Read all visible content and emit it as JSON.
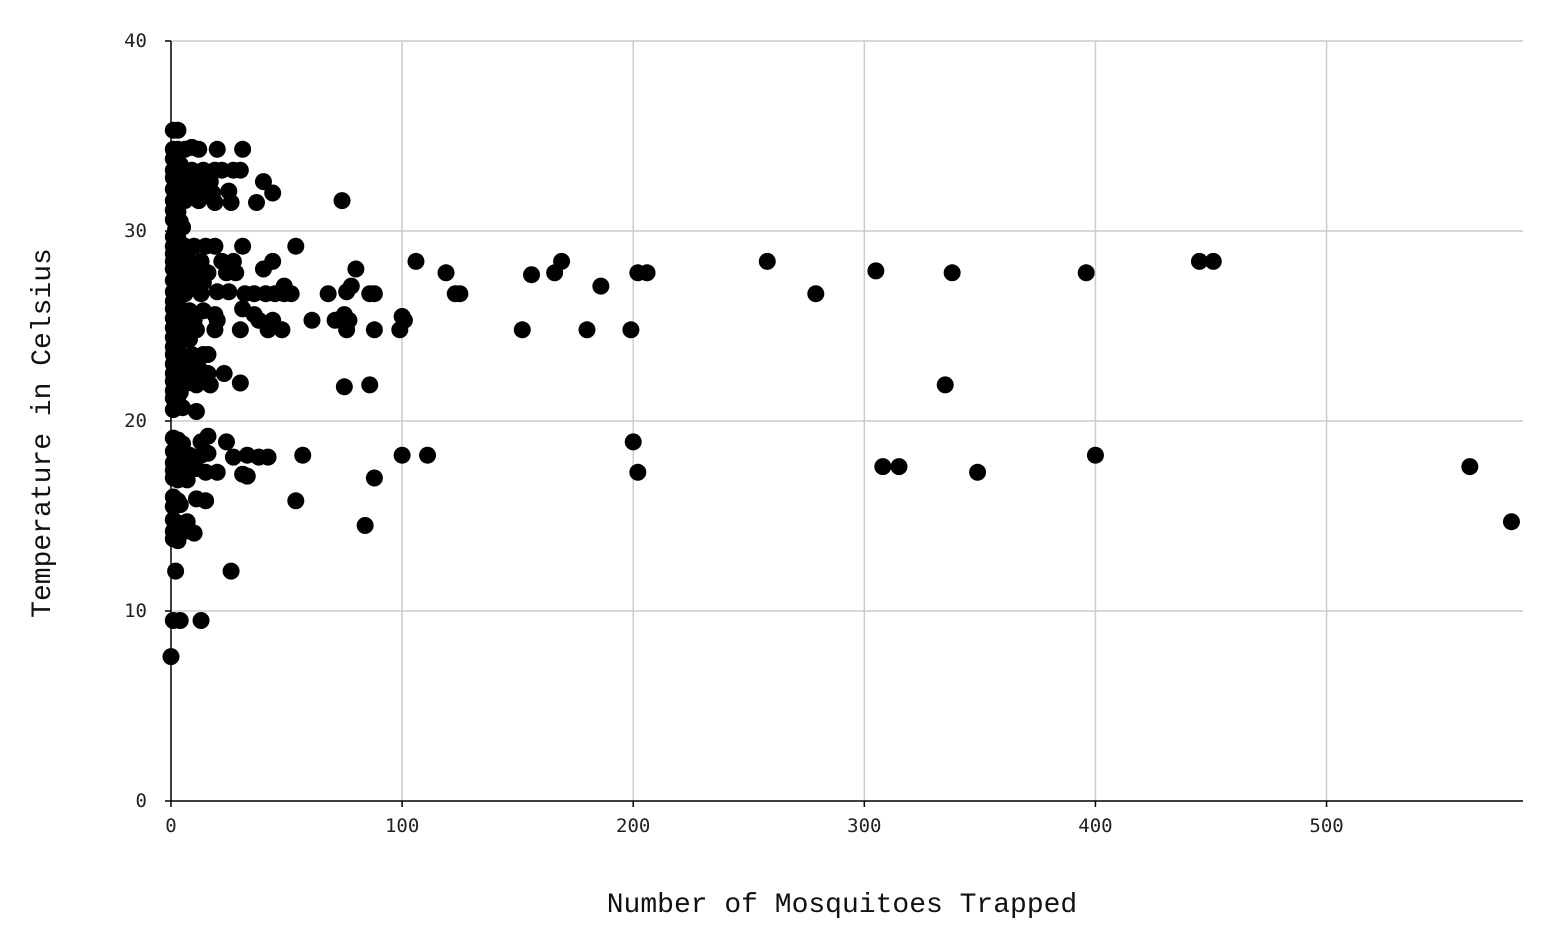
{
  "chart_data": {
    "type": "scatter",
    "title": "",
    "xlabel": "Number of Mosquitoes Trapped",
    "ylabel": "Temperature in Celsius",
    "xlim": [
      0,
      585
    ],
    "ylim": [
      0,
      40
    ],
    "xticks": [
      "0",
      "100",
      "200",
      "300",
      "400",
      "500"
    ],
    "yticks": [
      "0",
      "10",
      "20",
      "30",
      "40"
    ],
    "grid": true,
    "legend": "none",
    "marker_color": "#000000",
    "points": [
      [
        1,
        35.3
      ],
      [
        3,
        35.3
      ],
      [
        1,
        34.3
      ],
      [
        3,
        34.3
      ],
      [
        6,
        34.3
      ],
      [
        9,
        34.4
      ],
      [
        12,
        34.3
      ],
      [
        20,
        34.3
      ],
      [
        31,
        34.3
      ],
      [
        1,
        33.8
      ],
      [
        2,
        33.6
      ],
      [
        4,
        33.5
      ],
      [
        1,
        33.2
      ],
      [
        5,
        33.2
      ],
      [
        9,
        33.2
      ],
      [
        14,
        33.2
      ],
      [
        19,
        33.2
      ],
      [
        22,
        33.2
      ],
      [
        27,
        33.2
      ],
      [
        30,
        33.2
      ],
      [
        1,
        32.8
      ],
      [
        3,
        32.6
      ],
      [
        6,
        32.6
      ],
      [
        11,
        32.6
      ],
      [
        17,
        32.6
      ],
      [
        40,
        32.6
      ],
      [
        1,
        32.2
      ],
      [
        4,
        32.1
      ],
      [
        2,
        31.9
      ],
      [
        8,
        32.0
      ],
      [
        13,
        32.1
      ],
      [
        18,
        32.0
      ],
      [
        25,
        32.1
      ],
      [
        44,
        32.0
      ],
      [
        1,
        31.6
      ],
      [
        3,
        31.5
      ],
      [
        6,
        31.6
      ],
      [
        12,
        31.6
      ],
      [
        19,
        31.5
      ],
      [
        26,
        31.5
      ],
      [
        37,
        31.5
      ],
      [
        74,
        31.6
      ],
      [
        1,
        31.1
      ],
      [
        3,
        31.0
      ],
      [
        1,
        30.6
      ],
      [
        4,
        30.5
      ],
      [
        2,
        30.1
      ],
      [
        5,
        30.2
      ],
      [
        1,
        29.7
      ],
      [
        3,
        29.6
      ],
      [
        1,
        29.2
      ],
      [
        3,
        29.2
      ],
      [
        6,
        29.2
      ],
      [
        10,
        29.2
      ],
      [
        15,
        29.2
      ],
      [
        19,
        29.2
      ],
      [
        31,
        29.2
      ],
      [
        54,
        29.2
      ],
      [
        1,
        28.8
      ],
      [
        4,
        28.7
      ],
      [
        7,
        28.6
      ],
      [
        1,
        28.4
      ],
      [
        3,
        28.4
      ],
      [
        8,
        28.4
      ],
      [
        13,
        28.4
      ],
      [
        22,
        28.4
      ],
      [
        27,
        28.4
      ],
      [
        44,
        28.4
      ],
      [
        106,
        28.4
      ],
      [
        169,
        28.4
      ],
      [
        258,
        28.4
      ],
      [
        451,
        28.4
      ],
      [
        445,
        28.4
      ],
      [
        1,
        28.0
      ],
      [
        2,
        27.8
      ],
      [
        5,
        27.8
      ],
      [
        11,
        27.8
      ],
      [
        16,
        27.8
      ],
      [
        24,
        27.8
      ],
      [
        28,
        27.8
      ],
      [
        40,
        28.0
      ],
      [
        80,
        28.0
      ],
      [
        119,
        27.8
      ],
      [
        156,
        27.7
      ],
      [
        166,
        27.8
      ],
      [
        202,
        27.8
      ],
      [
        206,
        27.8
      ],
      [
        305,
        27.9
      ],
      [
        338,
        27.8
      ],
      [
        396,
        27.8
      ],
      [
        1,
        27.4
      ],
      [
        4,
        27.2
      ],
      [
        9,
        27.3
      ],
      [
        14,
        27.3
      ],
      [
        49,
        27.1
      ],
      [
        78,
        27.1
      ],
      [
        186,
        27.1
      ],
      [
        1,
        26.8
      ],
      [
        3,
        26.7
      ],
      [
        6,
        26.7
      ],
      [
        13,
        26.7
      ],
      [
        20,
        26.8
      ],
      [
        25,
        26.8
      ],
      [
        32,
        26.7
      ],
      [
        36,
        26.7
      ],
      [
        41,
        26.7
      ],
      [
        45,
        26.7
      ],
      [
        49,
        26.7
      ],
      [
        52,
        26.7
      ],
      [
        68,
        26.7
      ],
      [
        76,
        26.8
      ],
      [
        86,
        26.7
      ],
      [
        88,
        26.7
      ],
      [
        123,
        26.7
      ],
      [
        125,
        26.7
      ],
      [
        279,
        26.7
      ],
      [
        1,
        26.3
      ],
      [
        3,
        26.2
      ],
      [
        1,
        25.9
      ],
      [
        4,
        25.9
      ],
      [
        8,
        25.8
      ],
      [
        14,
        25.8
      ],
      [
        19,
        25.6
      ],
      [
        31,
        25.9
      ],
      [
        36,
        25.6
      ],
      [
        75,
        25.6
      ],
      [
        100,
        25.5
      ],
      [
        1,
        25.4
      ],
      [
        5,
        25.4
      ],
      [
        10,
        25.3
      ],
      [
        20,
        25.3
      ],
      [
        38,
        25.3
      ],
      [
        44,
        25.3
      ],
      [
        61,
        25.3
      ],
      [
        71,
        25.3
      ],
      [
        77,
        25.3
      ],
      [
        101,
        25.3
      ],
      [
        1,
        24.9
      ],
      [
        3,
        24.8
      ],
      [
        7,
        24.8
      ],
      [
        11,
        24.8
      ],
      [
        19,
        24.8
      ],
      [
        30,
        24.8
      ],
      [
        42,
        24.8
      ],
      [
        48,
        24.8
      ],
      [
        76,
        24.8
      ],
      [
        88,
        24.8
      ],
      [
        99,
        24.8
      ],
      [
        152,
        24.8
      ],
      [
        180,
        24.8
      ],
      [
        199,
        24.8
      ],
      [
        1,
        24.4
      ],
      [
        4,
        24.3
      ],
      [
        8,
        24.3
      ],
      [
        1,
        23.9
      ],
      [
        3,
        23.9
      ],
      [
        1,
        23.5
      ],
      [
        4,
        23.5
      ],
      [
        9,
        23.5
      ],
      [
        14,
        23.5
      ],
      [
        16,
        23.5
      ],
      [
        1,
        23.0
      ],
      [
        3,
        22.9
      ],
      [
        6,
        22.9
      ],
      [
        12,
        22.8
      ],
      [
        1,
        22.5
      ],
      [
        5,
        22.4
      ],
      [
        10,
        22.5
      ],
      [
        16,
        22.5
      ],
      [
        23,
        22.5
      ],
      [
        1,
        22.1
      ],
      [
        3,
        21.9
      ],
      [
        7,
        22.0
      ],
      [
        11,
        21.9
      ],
      [
        17,
        21.9
      ],
      [
        30,
        22.0
      ],
      [
        75,
        21.8
      ],
      [
        86,
        21.9
      ],
      [
        335,
        21.9
      ],
      [
        1,
        21.6
      ],
      [
        4,
        21.5
      ],
      [
        1,
        21.2
      ],
      [
        3,
        21.0
      ],
      [
        1,
        20.6
      ],
      [
        5,
        20.7
      ],
      [
        11,
        20.5
      ],
      [
        1,
        19.1
      ],
      [
        3,
        19.0
      ],
      [
        5,
        18.8
      ],
      [
        13,
        18.9
      ],
      [
        16,
        19.2
      ],
      [
        24,
        18.9
      ],
      [
        200,
        18.9
      ],
      [
        1,
        18.4
      ],
      [
        4,
        18.3
      ],
      [
        8,
        18.2
      ],
      [
        13,
        18.2
      ],
      [
        16,
        18.3
      ],
      [
        27,
        18.1
      ],
      [
        33,
        18.2
      ],
      [
        38,
        18.1
      ],
      [
        42,
        18.1
      ],
      [
        57,
        18.2
      ],
      [
        100,
        18.2
      ],
      [
        111,
        18.2
      ],
      [
        400,
        18.2
      ],
      [
        1,
        17.8
      ],
      [
        3,
        17.6
      ],
      [
        7,
        17.6
      ],
      [
        11,
        17.5
      ],
      [
        1,
        17.4
      ],
      [
        5,
        17.3
      ],
      [
        15,
        17.3
      ],
      [
        20,
        17.3
      ],
      [
        31,
        17.2
      ],
      [
        33,
        17.1
      ],
      [
        88,
        17.0
      ],
      [
        202,
        17.3
      ],
      [
        308,
        17.6
      ],
      [
        315,
        17.6
      ],
      [
        349,
        17.3
      ],
      [
        562,
        17.6
      ],
      [
        1,
        17.0
      ],
      [
        3,
        16.9
      ],
      [
        7,
        16.9
      ],
      [
        1,
        16.0
      ],
      [
        3,
        15.8
      ],
      [
        11,
        15.9
      ],
      [
        15,
        15.8
      ],
      [
        54,
        15.8
      ],
      [
        1,
        15.5
      ],
      [
        4,
        15.6
      ],
      [
        1,
        14.8
      ],
      [
        4,
        14.6
      ],
      [
        7,
        14.7
      ],
      [
        1,
        14.2
      ],
      [
        3,
        14.1
      ],
      [
        6,
        14.2
      ],
      [
        10,
        14.1
      ],
      [
        84,
        14.5
      ],
      [
        580,
        14.7
      ],
      [
        1,
        13.8
      ],
      [
        3,
        13.7
      ],
      [
        2,
        12.1
      ],
      [
        26,
        12.1
      ],
      [
        1,
        9.5
      ],
      [
        4,
        9.5
      ],
      [
        13,
        9.5
      ],
      [
        0,
        7.6
      ]
    ]
  }
}
